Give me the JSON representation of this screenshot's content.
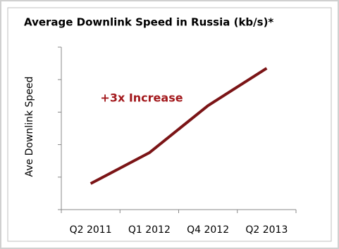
{
  "chart_data": {
    "type": "line",
    "title": "Average Downlink Speed in Russia (kb/s)*",
    "y_label": "Ave Downlink Speed",
    "annotation": "+3x Increase",
    "categories": [
      "Q2 2011",
      "Q1 2012",
      "Q4 2012",
      "Q2 2013"
    ],
    "values": [
      0.8,
      1.75,
      3.2,
      4.35
    ],
    "color": "#7b1416",
    "ylim": [
      0,
      5
    ],
    "yticks": [
      0,
      1,
      2,
      3,
      4,
      5
    ]
  }
}
